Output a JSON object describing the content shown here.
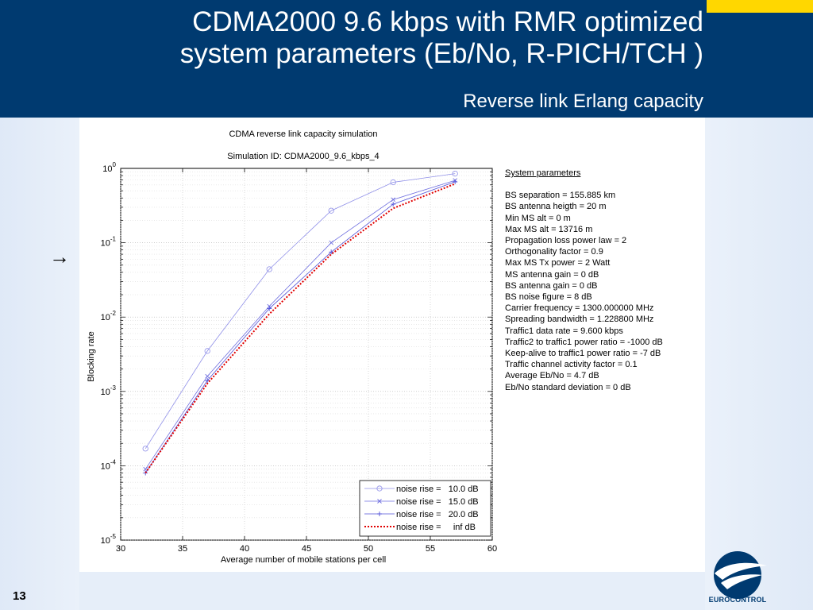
{
  "slide": {
    "title_line1": "CDMA2000 9.6 kbps with  RMR optimized",
    "title_line2": "system parameters (Eb/No, R-PICH/TCH )",
    "subtitle": "Reverse link Erlang capacity",
    "slide_number": "13",
    "logo_text": "EUROCONTROL",
    "arrow_glyph": "→",
    "colors": {
      "header_bg": "#003a70",
      "accent": "#ffd700",
      "light_bg": "#e6eef9"
    }
  },
  "chart_data": {
    "type": "line",
    "title": "CDMA reverse link capacity simulation",
    "subtitle": "Simulation ID: CDMA2000_9.6_kbps_4",
    "xlabel": "Average number of mobile stations per cell",
    "ylabel": "Blocking rate",
    "xlim": [
      30,
      60
    ],
    "ylim": [
      1e-05,
      1
    ],
    "yscale": "log",
    "grid": true,
    "legend_position": "bottom-right",
    "x_ticks": [
      "30",
      "35",
      "40",
      "45",
      "50",
      "55",
      "60"
    ],
    "y_ticks": [
      "10^0",
      "10^-1",
      "10^-2",
      "10^-3",
      "10^-4",
      "10^-5"
    ],
    "x": [
      32,
      37,
      42,
      47,
      52,
      57
    ],
    "series": [
      {
        "name": "noise rise =   10.0 dB",
        "marker": "circle",
        "color": "#8f8fe8",
        "values": [
          0.00017,
          0.0035,
          0.044,
          0.27,
          0.65,
          0.85
        ]
      },
      {
        "name": "noise rise =   15.0 dB",
        "marker": "x",
        "color": "#6f6fe0",
        "values": [
          9e-05,
          0.0016,
          0.014,
          0.1,
          0.38,
          0.69
        ]
      },
      {
        "name": "noise rise =   20.0 dB",
        "marker": "plus",
        "color": "#5050d8",
        "values": [
          8e-05,
          0.0014,
          0.013,
          0.075,
          0.33,
          0.66
        ]
      },
      {
        "name": "noise rise =     inf dB",
        "marker": "none",
        "color": "#e00000",
        "dashed": true,
        "values": [
          8e-05,
          0.00128,
          0.011,
          0.07,
          0.29,
          0.62
        ]
      }
    ],
    "parameters_title": "System parameters",
    "parameters": [
      "BS separation = 155.885 km",
      "BS antenna heigth = 20 m",
      "Min MS alt = 0 m",
      "Max MS alt = 13716 m",
      "Propagation loss power law = 2",
      "Orthogonality factor = 0.9",
      "Max MS Tx power = 2 Watt",
      "MS antenna gain = 0 dB",
      "BS antenna gain = 0 dB",
      "BS noise figure = 8 dB",
      "Carrier frequency = 1300.000000 MHz",
      "Spreading bandwidth = 1.228800 MHz",
      "Traffic1 data rate = 9.600 kbps",
      "Traffic2 to traffic1 power ratio = -1000 dB",
      "Keep-alive to traffic1 power ratio = -7 dB",
      "Traffic channel activity factor = 0.1",
      "Average Eb/No  = 4.7 dB",
      "Eb/No standard deviation = 0 dB"
    ]
  }
}
